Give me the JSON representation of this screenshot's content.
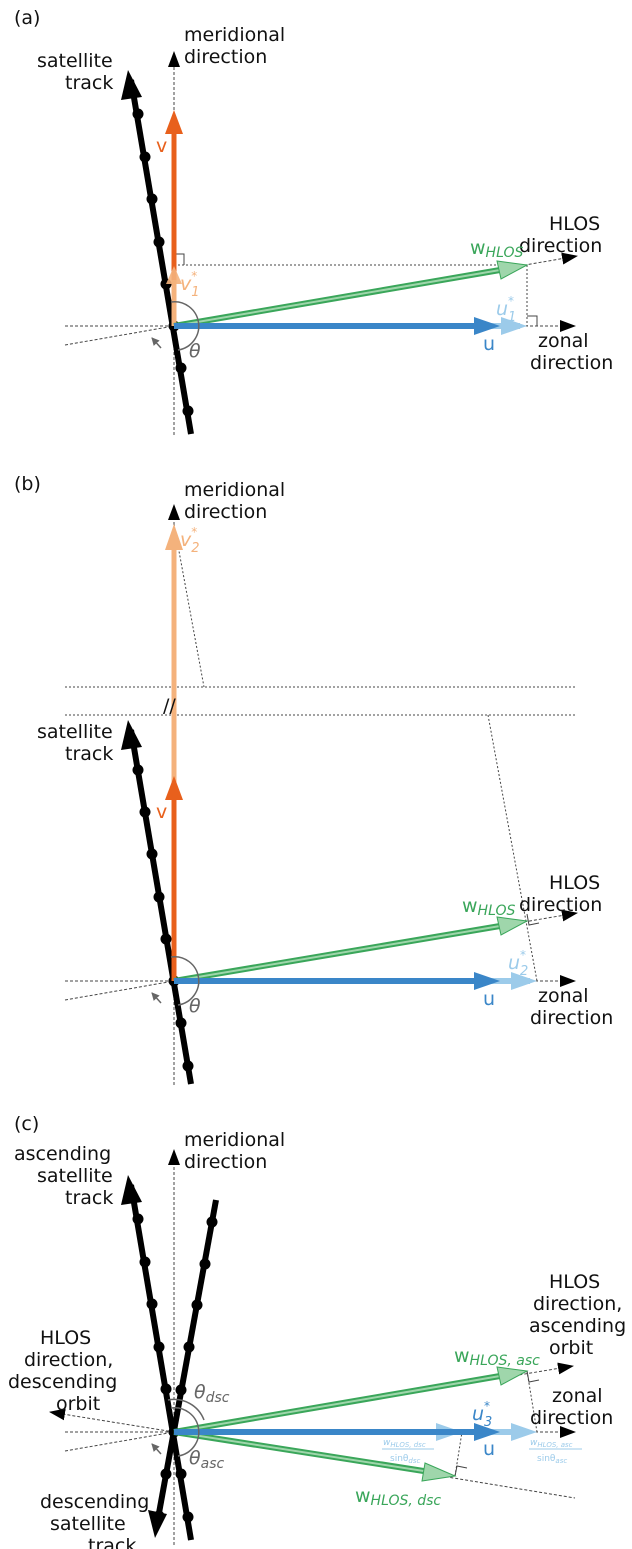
{
  "panels": {
    "a": {
      "label": "(a)",
      "meridional": [
        "meridional",
        "direction"
      ],
      "track": [
        "satellite",
        "track"
      ],
      "hlos": [
        "HLOS",
        "direction"
      ],
      "zonal": [
        "zonal",
        "direction"
      ],
      "v": "v",
      "v_star": "v",
      "v_star_sub": "1",
      "w": "w",
      "w_sub": "HLOS",
      "u": "u",
      "u_star": "u",
      "u_star_sub": "1",
      "theta": "θ"
    },
    "b": {
      "label": "(b)",
      "meridional": [
        "meridional",
        "direction"
      ],
      "track": [
        "satellite",
        "track"
      ],
      "hlos": [
        "HLOS",
        "direction"
      ],
      "zonal": [
        "zonal",
        "direction"
      ],
      "v": "v",
      "v_star": "v",
      "v_star_sub": "2",
      "w": "w",
      "w_sub": "HLOS",
      "u": "u",
      "u_star": "u",
      "u_star_sub": "2",
      "theta": "θ",
      "break_mark": "//"
    },
    "c": {
      "label": "(c)",
      "meridional": [
        "meridional",
        "direction"
      ],
      "asc_track": [
        "ascending",
        "satellite",
        "track"
      ],
      "dsc_track": [
        "descending",
        "satellite",
        "track"
      ],
      "hlos_asc": [
        "HLOS",
        "direction,",
        "ascending",
        "orbit"
      ],
      "hlos_dsc": [
        "HLOS",
        "direction,",
        "descending",
        "orbit"
      ],
      "zonal": [
        "zonal",
        "direction"
      ],
      "w_asc": "w",
      "w_asc_sub": "HLOS, asc",
      "w_dsc": "w",
      "w_dsc_sub": "HLOS, dsc",
      "u": "u",
      "u_star": "u",
      "u_star_sub": "3",
      "theta_dsc": "θ",
      "theta_dsc_sub": "dsc",
      "theta_asc": "θ",
      "theta_asc_sub": "asc",
      "frac_dsc_num": "w",
      "frac_dsc_num_sub": "HLOS, dsc",
      "frac_dsc_den": "sinθ",
      "frac_dsc_den_sub": "dsc",
      "frac_asc_num": "w",
      "frac_asc_num_sub": "HLOS, asc",
      "frac_asc_den": "sinθ",
      "frac_asc_den_sub": "asc"
    }
  },
  "colors": {
    "v": "#e8601c",
    "v_star": "#f4b27c",
    "u": "#3a86c8",
    "u_star": "#9ccbea",
    "w": "#3aa65a",
    "w_fill": "#9fd6ab",
    "track": "#000000",
    "guide": "#444444"
  }
}
